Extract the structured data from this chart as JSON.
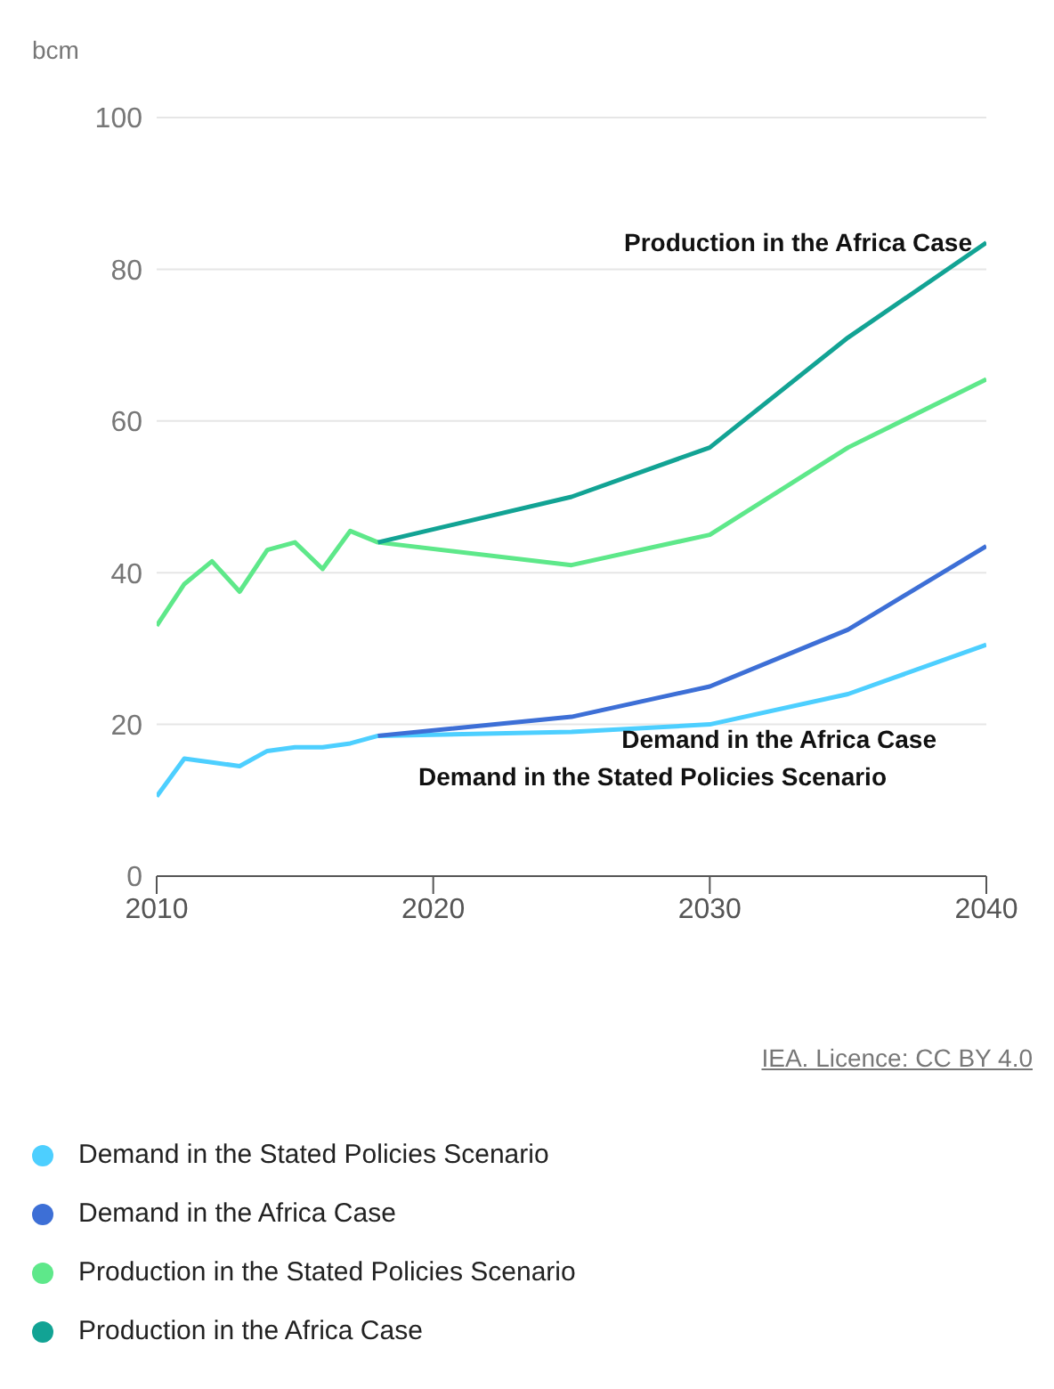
{
  "chart_data": {
    "type": "line",
    "ylabel": "bcm",
    "xlim": [
      2010,
      2040
    ],
    "xticks": [
      2010,
      2020,
      2030,
      2040
    ],
    "ylim": [
      0,
      100
    ],
    "yticks": [
      0,
      20,
      40,
      60,
      80,
      100
    ],
    "grid": "y",
    "legend": "bottom",
    "marker": "none",
    "line_style": "solid",
    "series": [
      {
        "name": "Demand in the Stated Policies Scenario",
        "color": "#4dcfff",
        "x": [
          2010,
          2011,
          2012,
          2013,
          2014,
          2015,
          2016,
          2017,
          2018,
          2025,
          2030,
          2035,
          2040
        ],
        "values": [
          10.5,
          15.5,
          15,
          14.5,
          16.5,
          17,
          17,
          17.5,
          18.5,
          19,
          20,
          24,
          30.5
        ]
      },
      {
        "name": "Demand in the Africa Case",
        "color": "#3d6fd6",
        "x": [
          2018,
          2025,
          2030,
          2035,
          2040
        ],
        "values": [
          18.5,
          21,
          25,
          32.5,
          43.5
        ]
      },
      {
        "name": "Production in the Stated Policies Scenario",
        "color": "#5ee88a",
        "x": [
          2010,
          2011,
          2012,
          2013,
          2014,
          2015,
          2016,
          2017,
          2018,
          2025,
          2030,
          2035,
          2040
        ],
        "values": [
          33,
          38.5,
          41.5,
          37.5,
          43,
          44,
          40.5,
          45.5,
          44,
          41,
          45,
          56.5,
          65.5
        ]
      },
      {
        "name": "Production in the Africa Case",
        "color": "#12a394",
        "x": [
          2018,
          2025,
          2030,
          2035,
          2040
        ],
        "values": [
          44,
          50,
          56.5,
          71,
          83.5
        ]
      }
    ],
    "annotations": [
      "Production in the Africa Case",
      "Demand in the Africa Case",
      "Demand in the Stated Policies Scenario",
      "IEA. Licence: CC BY 4.0"
    ]
  }
}
